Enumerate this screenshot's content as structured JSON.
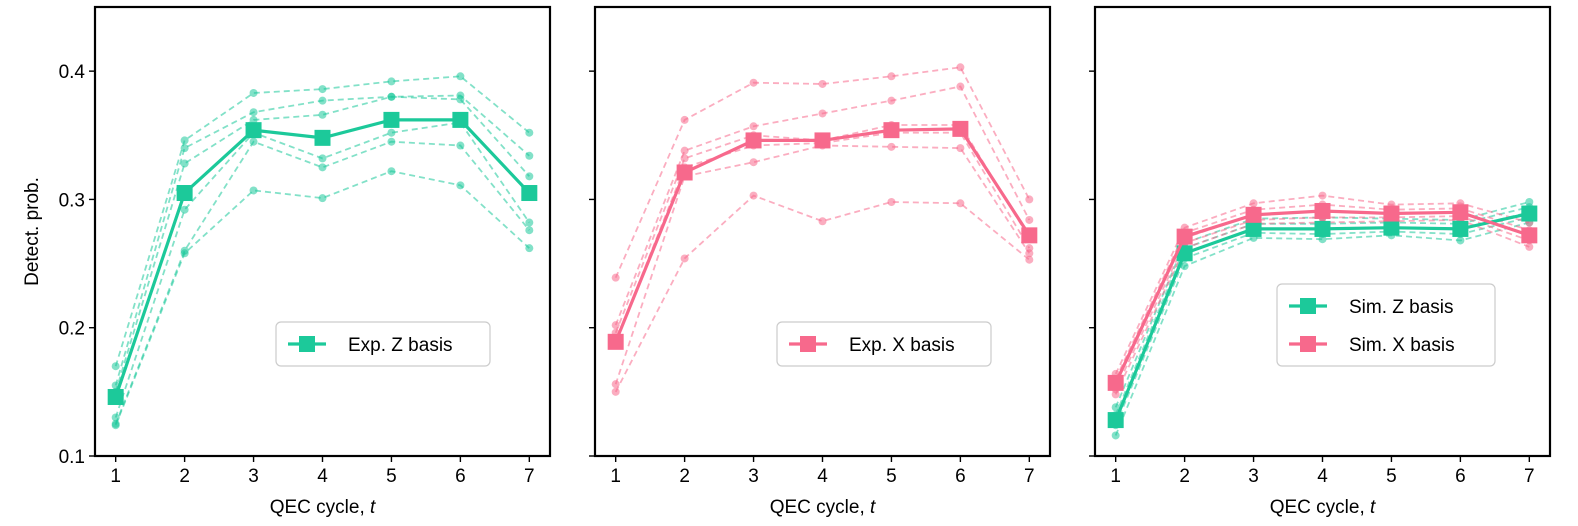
{
  "colors": {
    "z": "#1cc99a",
    "x": "#f7698c"
  },
  "chart_data": [
    {
      "type": "line",
      "panel": "exp-z",
      "xlabel_prefix": "QEC cycle, ",
      "xlabel_var": "t",
      "ylabel": "Detect. prob.",
      "xlim": [
        0.7,
        7.3
      ],
      "ylim": [
        0.1,
        0.45
      ],
      "x": [
        1,
        2,
        3,
        4,
        5,
        6,
        7
      ],
      "x_ticks": [
        "1",
        "2",
        "3",
        "4",
        "5",
        "6",
        "7"
      ],
      "y_ticks": [
        0.1,
        0.2,
        0.3,
        0.4
      ],
      "y_tick_labels": [
        "0.1",
        "0.2",
        "0.3",
        "0.4"
      ],
      "show_y_tick_labels": true,
      "legend_position": "lower-right",
      "series": [
        {
          "name": "Exp. Z basis",
          "color": "z",
          "style": "solid-square",
          "values": [
            0.146,
            0.305,
            0.354,
            0.348,
            0.362,
            0.362,
            0.305
          ]
        }
      ],
      "individual_series": {
        "color": "z",
        "style": "dashed-circle",
        "values": [
          [
            0.17,
            0.346,
            0.383,
            0.386,
            0.392,
            0.396,
            0.352
          ],
          [
            0.155,
            0.34,
            0.368,
            0.377,
            0.38,
            0.381,
            0.334
          ],
          [
            0.15,
            0.328,
            0.362,
            0.366,
            0.38,
            0.378,
            0.318
          ],
          [
            0.13,
            0.292,
            0.352,
            0.332,
            0.352,
            0.36,
            0.282
          ],
          [
            0.125,
            0.26,
            0.345,
            0.325,
            0.345,
            0.342,
            0.276
          ],
          [
            0.124,
            0.258,
            0.307,
            0.301,
            0.322,
            0.311,
            0.262
          ]
        ]
      }
    },
    {
      "type": "line",
      "panel": "exp-x",
      "xlabel_prefix": "QEC cycle, ",
      "xlabel_var": "t",
      "ylabel": "",
      "xlim": [
        0.7,
        7.3
      ],
      "ylim": [
        0.1,
        0.45
      ],
      "x": [
        1,
        2,
        3,
        4,
        5,
        6,
        7
      ],
      "x_ticks": [
        "1",
        "2",
        "3",
        "4",
        "5",
        "6",
        "7"
      ],
      "y_ticks": [
        0.1,
        0.2,
        0.3,
        0.4
      ],
      "y_tick_labels": [
        "",
        "",
        "",
        ""
      ],
      "show_y_tick_labels": false,
      "legend_position": "lower-right",
      "series": [
        {
          "name": "Exp. X basis",
          "color": "x",
          "style": "solid-square",
          "values": [
            0.189,
            0.321,
            0.346,
            0.346,
            0.354,
            0.355,
            0.272
          ]
        }
      ],
      "individual_series": {
        "color": "x",
        "style": "dashed-circle",
        "values": [
          [
            0.239,
            0.362,
            0.391,
            0.39,
            0.396,
            0.403,
            0.3
          ],
          [
            0.202,
            0.338,
            0.357,
            0.367,
            0.377,
            0.388,
            0.284
          ],
          [
            0.196,
            0.332,
            0.35,
            0.346,
            0.358,
            0.358,
            0.27
          ],
          [
            0.189,
            0.325,
            0.342,
            0.344,
            0.352,
            0.352,
            0.262
          ],
          [
            0.156,
            0.318,
            0.329,
            0.342,
            0.341,
            0.34,
            0.258
          ],
          [
            0.15,
            0.254,
            0.303,
            0.283,
            0.298,
            0.297,
            0.253
          ]
        ]
      }
    },
    {
      "type": "line",
      "panel": "sim",
      "xlabel_prefix": "QEC cycle, ",
      "xlabel_var": "t",
      "ylabel": "",
      "xlim": [
        0.7,
        7.3
      ],
      "ylim": [
        0.1,
        0.45
      ],
      "x": [
        1,
        2,
        3,
        4,
        5,
        6,
        7
      ],
      "x_ticks": [
        "1",
        "2",
        "3",
        "4",
        "5",
        "6",
        "7"
      ],
      "y_ticks": [
        0.1,
        0.2,
        0.3,
        0.4
      ],
      "y_tick_labels": [
        "",
        "",
        "",
        ""
      ],
      "show_y_tick_labels": false,
      "legend_position": "right",
      "series": [
        {
          "name": "Sim. Z basis",
          "color": "z",
          "style": "solid-square",
          "values": [
            0.128,
            0.258,
            0.277,
            0.277,
            0.278,
            0.277,
            0.289
          ]
        },
        {
          "name": "Sim. X basis",
          "color": "x",
          "style": "solid-square",
          "values": [
            0.157,
            0.271,
            0.288,
            0.291,
            0.289,
            0.29,
            0.272
          ]
        }
      ],
      "individual_series_list": [
        {
          "color": "z",
          "style": "dashed-circle",
          "values": [
            [
              0.138,
              0.266,
              0.285,
              0.286,
              0.285,
              0.284,
              0.298
            ],
            [
              0.132,
              0.262,
              0.281,
              0.281,
              0.282,
              0.281,
              0.294
            ],
            [
              0.128,
              0.258,
              0.277,
              0.277,
              0.278,
              0.277,
              0.29
            ],
            [
              0.124,
              0.254,
              0.274,
              0.273,
              0.275,
              0.273,
              0.286
            ],
            [
              0.116,
              0.248,
              0.27,
              0.269,
              0.272,
              0.268,
              0.282
            ]
          ]
        },
        {
          "color": "x",
          "style": "dashed-circle",
          "values": [
            [
              0.164,
              0.278,
              0.297,
              0.303,
              0.296,
              0.297,
              0.282
            ],
            [
              0.16,
              0.274,
              0.292,
              0.296,
              0.292,
              0.293,
              0.276
            ],
            [
              0.156,
              0.27,
              0.288,
              0.291,
              0.289,
              0.29,
              0.272
            ],
            [
              0.152,
              0.266,
              0.284,
              0.286,
              0.286,
              0.287,
              0.268
            ],
            [
              0.148,
              0.262,
              0.281,
              0.282,
              0.283,
              0.284,
              0.263
            ]
          ]
        }
      ]
    }
  ]
}
